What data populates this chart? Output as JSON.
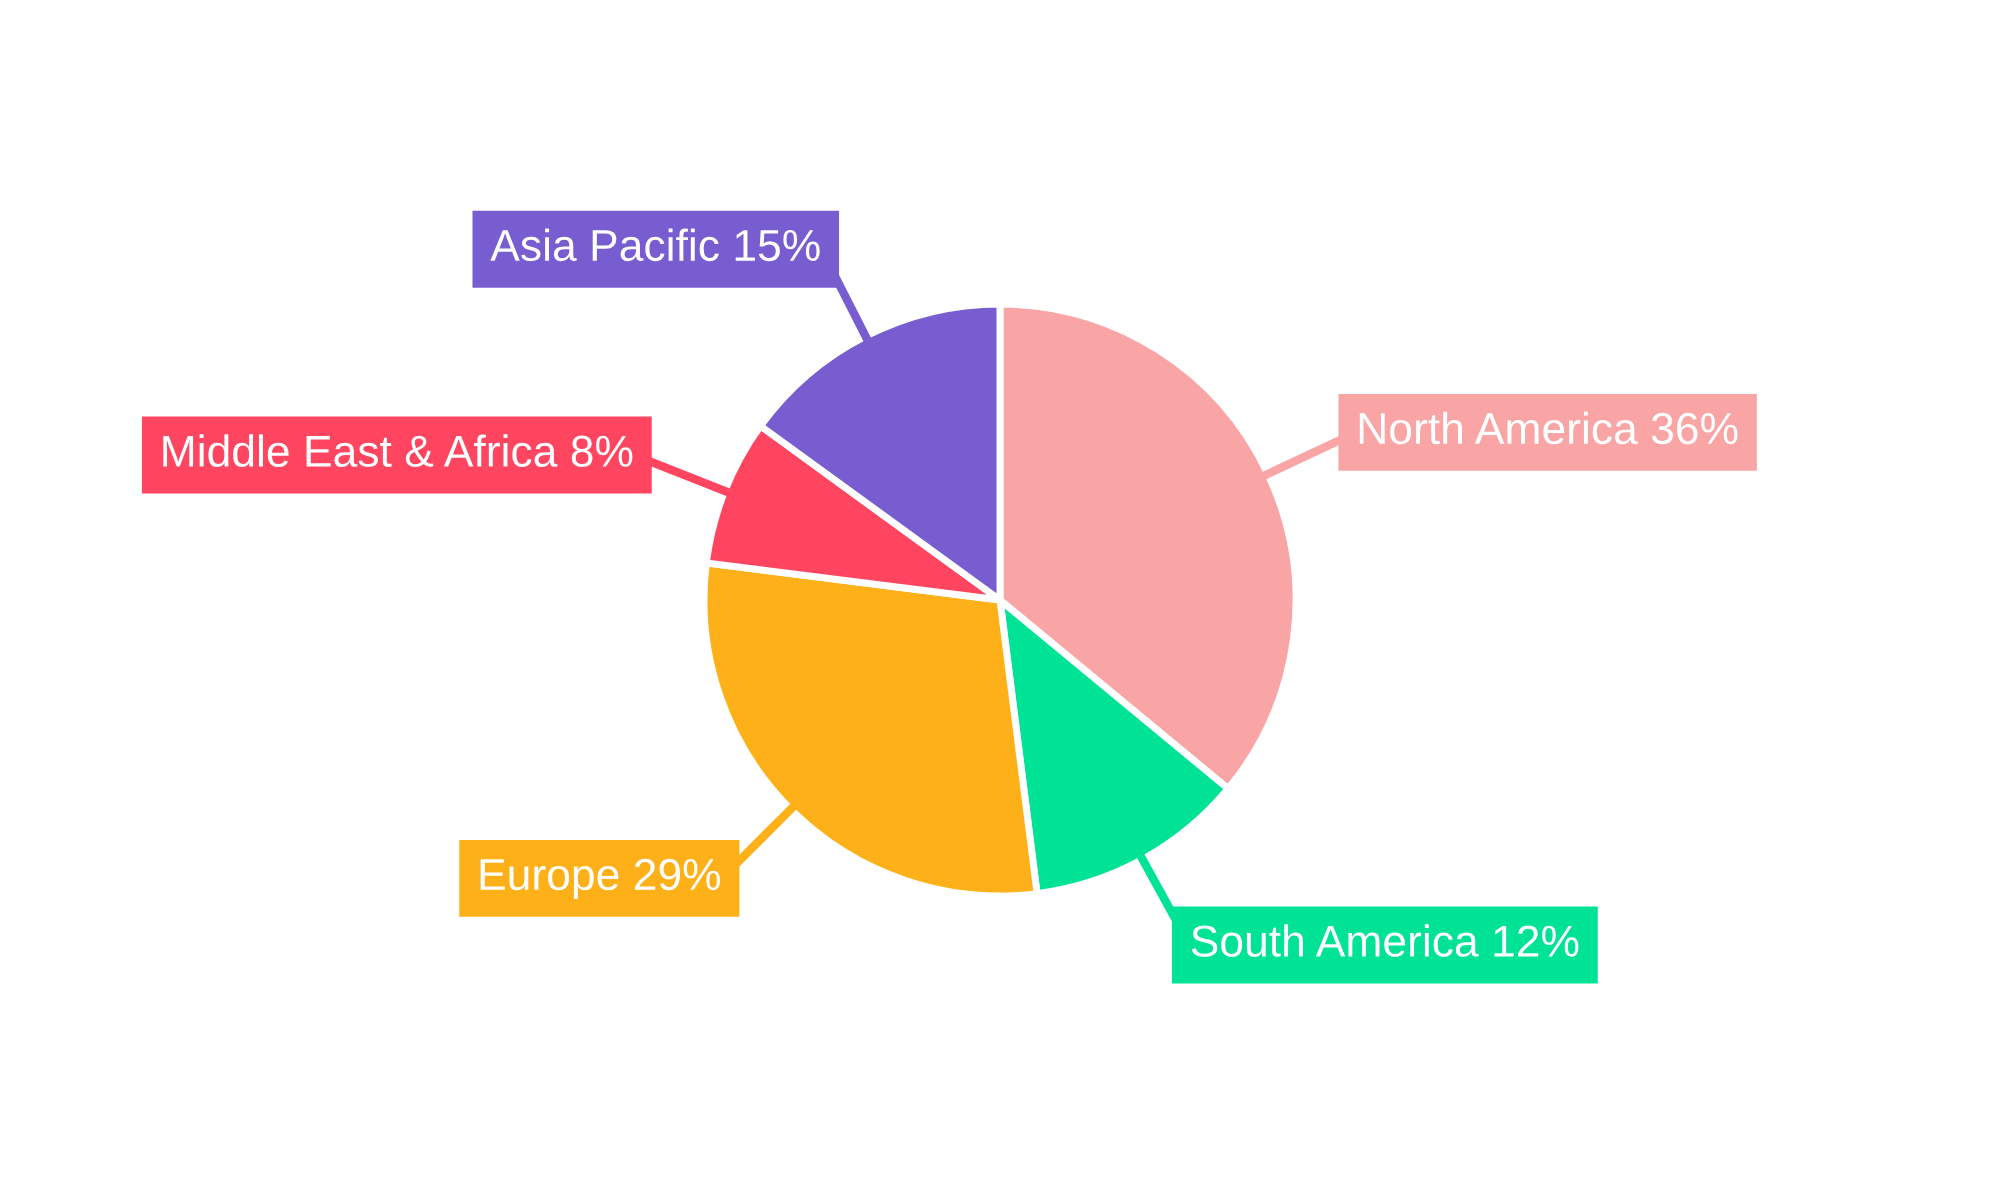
{
  "chart_data": {
    "type": "pie",
    "categories": [
      "North America",
      "South America",
      "Europe",
      "Middle East & Africa",
      "Asia Pacific"
    ],
    "values": [
      36,
      12,
      29,
      8,
      15
    ],
    "value_labels": [
      "36%",
      "12%",
      "29%",
      "8%",
      "15%"
    ],
    "colors": [
      "#f9a5a6",
      "#00e396",
      "#feb019",
      "#ff4560",
      "#775dd0"
    ],
    "legend": false
  }
}
